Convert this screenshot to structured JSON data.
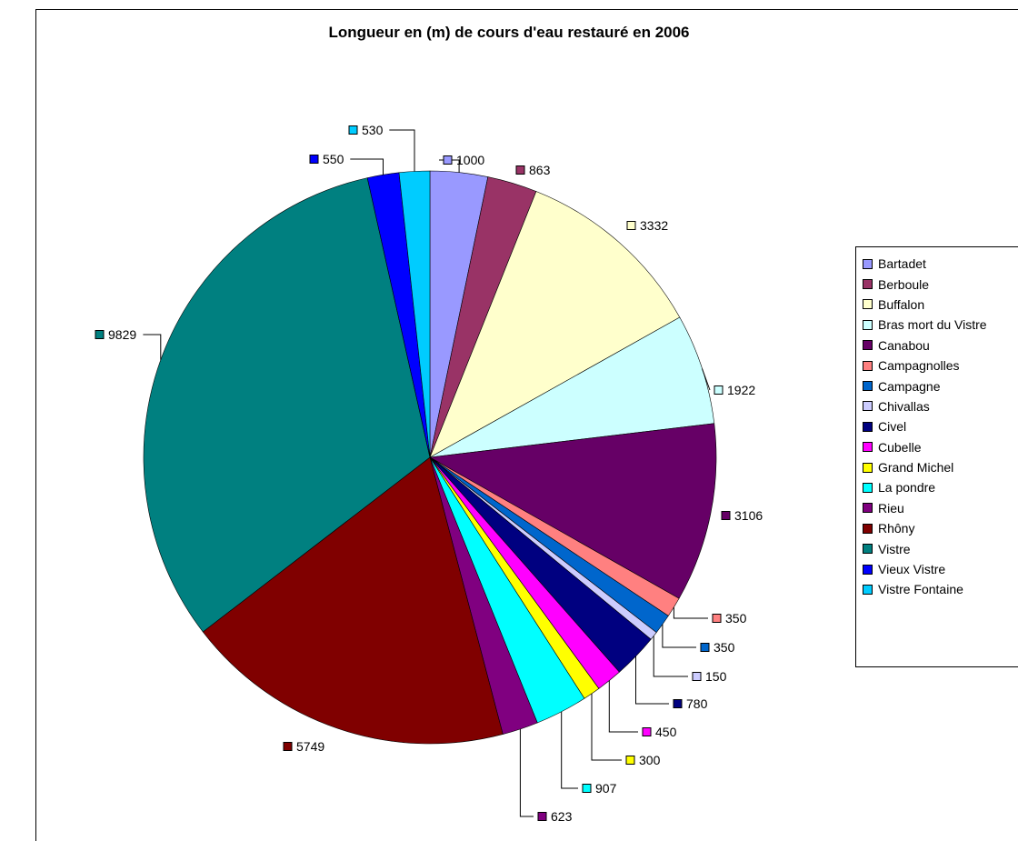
{
  "chart_data": {
    "type": "pie",
    "title": "Longueur en (m) de cours d'eau restauré en 2006",
    "categories": [
      "Bartadet",
      "Berboule",
      "Buffalon",
      "Bras mort du Vistre",
      "Canabou",
      "Campagnolles",
      "Campagne",
      "Chivallas",
      "Civel",
      "Cubelle",
      "Grand Michel",
      "La pondre",
      "Rieu",
      "Rhôny",
      "Vistre",
      "Vieux Vistre",
      "Vistre Fontaine"
    ],
    "values": [
      1000,
      863,
      3332,
      1922,
      3106,
      350,
      350,
      150,
      780,
      450,
      300,
      907,
      623,
      5749,
      9829,
      550,
      530
    ],
    "data_labels": [
      "1000",
      "863",
      "3332",
      "1922",
      "3106",
      "350",
      "350",
      "150",
      "780",
      "450",
      "300",
      "907",
      "623",
      "5749",
      "9829",
      "550",
      "530"
    ],
    "colors": [
      "#9999ff",
      "#993366",
      "#ffffcc",
      "#ccffff",
      "#660066",
      "#ff8080",
      "#0066cc",
      "#ccccff",
      "#000080",
      "#ff00ff",
      "#ffff00",
      "#00ffff",
      "#800080",
      "#800000",
      "#008080",
      "#0000ff",
      "#00ccff"
    ],
    "legend_position": "right"
  }
}
